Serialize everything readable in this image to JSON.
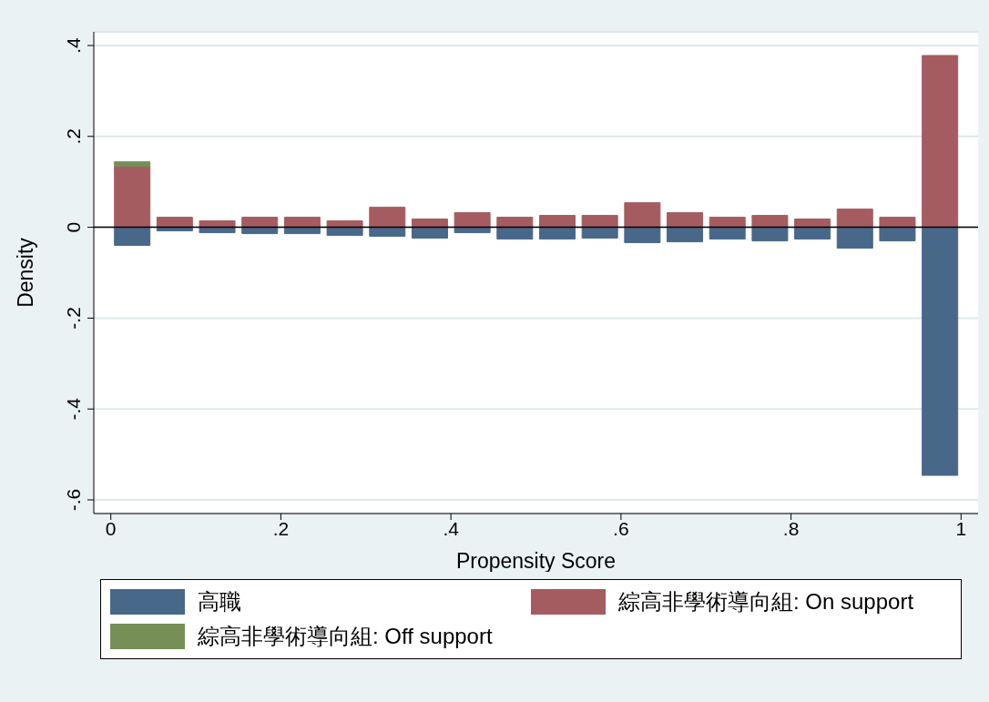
{
  "chart_data": {
    "type": "bar",
    "stacked": true,
    "xlabel": "Propensity Score",
    "ylabel": "Density",
    "x": [
      0.025,
      0.075,
      0.125,
      0.175,
      0.225,
      0.275,
      0.325,
      0.375,
      0.425,
      0.475,
      0.525,
      0.575,
      0.625,
      0.675,
      0.725,
      0.775,
      0.825,
      0.875,
      0.925,
      0.975
    ],
    "series": [
      {
        "name": "高職",
        "color": "#48688a",
        "values": [
          -0.04,
          -0.008,
          -0.012,
          -0.014,
          -0.014,
          -0.018,
          -0.02,
          -0.024,
          -0.012,
          -0.026,
          -0.026,
          -0.024,
          -0.034,
          -0.032,
          -0.026,
          -0.03,
          -0.026,
          -0.046,
          -0.03,
          -0.546
        ]
      },
      {
        "name": "綜高非學術導向組: On support",
        "color": "#a55c60",
        "values": [
          0.134,
          0.022,
          0.014,
          0.022,
          0.022,
          0.014,
          0.044,
          0.018,
          0.032,
          0.022,
          0.026,
          0.026,
          0.054,
          0.032,
          0.022,
          0.026,
          0.018,
          0.04,
          0.022,
          0.378
        ]
      },
      {
        "name": "綜高非學術導向組: Off support",
        "color": "#768f56",
        "values": [
          0.01,
          null,
          null,
          null,
          null,
          null,
          null,
          null,
          null,
          null,
          null,
          null,
          null,
          null,
          null,
          null,
          null,
          null,
          null,
          null
        ]
      }
    ],
    "xlim": [
      -0.02,
      1.02
    ],
    "xticks": [
      0,
      {
        "value": 0.2,
        "label": ".2"
      },
      {
        "value": 0.4,
        "label": ".4"
      },
      {
        "value": 0.6,
        "label": ".6"
      },
      {
        "value": 0.8,
        "label": ".8"
      },
      1
    ],
    "ylim": [
      -0.63,
      0.43
    ],
    "yticks": [
      {
        "value": -0.6,
        "label": "-.6"
      },
      {
        "value": -0.4,
        "label": "-.4"
      },
      {
        "value": -0.2,
        "label": "-.2"
      },
      0,
      {
        "value": 0.2,
        "label": ".2"
      },
      {
        "value": 0.4,
        "label": ".4"
      }
    ],
    "ref_lines": [
      {
        "axis": "y",
        "value": 0,
        "color": "#000000"
      }
    ],
    "grid": "y",
    "legend": "bottom"
  }
}
